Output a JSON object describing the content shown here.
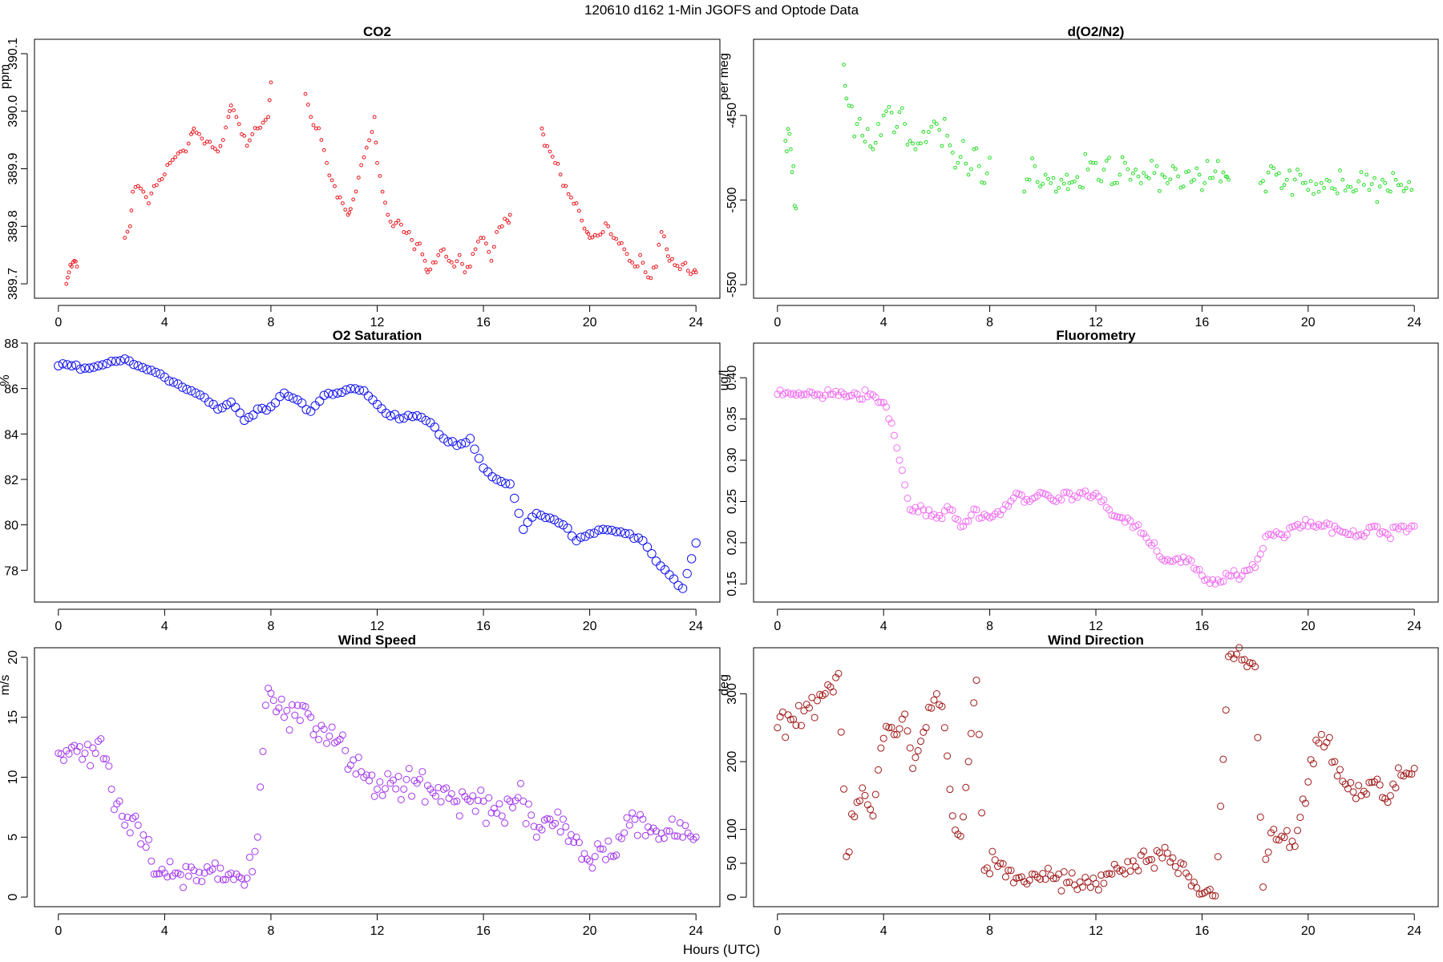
{
  "figure": {
    "title": "120610   d162   1-Min  JGOFS and Optode Data",
    "xlabel": "Hours (UTC)"
  },
  "chart_data": [
    {
      "type": "scatter",
      "title": "CO2",
      "ylabel": "ppm",
      "color": "#e8141c",
      "marker_size": "small",
      "xlim": [
        -0.9,
        24.9
      ],
      "ylim": [
        389.675,
        390.125
      ],
      "xticks": [
        0,
        4,
        8,
        12,
        16,
        20,
        24
      ],
      "yticks": [
        389.7,
        389.8,
        389.9,
        390.0,
        390.1
      ],
      "ytick_labels": [
        "389.7",
        "389.8",
        "389.9",
        "390.0",
        "390.1"
      ],
      "y_label_rotated": true,
      "series": [
        {
          "x": [
            0.3,
            0.4,
            0.5,
            0.6,
            0.7,
            2.5,
            2.7,
            2.8,
            3.0,
            3.2,
            3.4,
            3.6,
            3.8,
            4.0,
            4.2,
            4.4,
            4.6,
            4.8,
            5.0,
            5.1,
            6.0,
            6.2,
            6.4,
            6.5,
            6.7,
            6.9,
            7.1,
            7.3,
            7.5,
            7.7,
            7.9,
            8.0,
            9.3,
            9.5,
            9.7,
            9.9,
            10.1,
            10.3,
            10.5,
            10.7,
            10.9,
            11.0,
            11.9,
            12.0,
            12.2,
            12.4,
            12.6,
            12.8,
            13.0,
            13.2,
            13.4,
            13.6,
            13.8,
            13.9,
            14.5,
            14.7,
            14.9,
            15.1,
            15.3,
            15.5,
            15.7,
            15.9,
            16.1,
            16.3,
            16.5,
            16.7,
            16.9,
            17.0,
            18.2,
            18.3,
            18.5,
            18.7,
            18.9,
            19.1,
            19.3,
            19.5,
            19.7,
            19.9,
            20.0,
            20.5,
            20.7,
            20.9,
            21.1,
            21.3,
            21.5,
            21.7,
            21.9,
            22.1,
            22.3,
            22.5,
            22.7,
            22.9,
            23.0,
            23.9,
            24.0
          ],
          "y": [
            389.7,
            389.72,
            389.73,
            389.74,
            389.73,
            389.78,
            389.8,
            389.86,
            389.87,
            389.86,
            389.84,
            389.87,
            389.88,
            389.89,
            389.91,
            389.92,
            389.93,
            389.93,
            389.96,
            389.97,
            389.93,
            389.95,
            389.99,
            390.01,
            389.99,
            389.96,
            389.94,
            389.96,
            389.97,
            389.98,
            389.99,
            390.05,
            390.03,
            389.99,
            389.97,
            389.95,
            389.91,
            389.88,
            389.85,
            389.84,
            389.82,
            389.83,
            389.99,
            389.91,
            389.86,
            389.82,
            389.8,
            389.81,
            389.79,
            389.79,
            389.76,
            389.77,
            389.74,
            389.72,
            389.76,
            389.74,
            389.73,
            389.75,
            389.72,
            389.73,
            389.76,
            389.78,
            389.77,
            389.74,
            389.79,
            389.8,
            389.81,
            389.82,
            389.97,
            389.94,
            389.93,
            389.91,
            389.89,
            389.87,
            389.85,
            389.84,
            389.81,
            389.79,
            389.78,
            389.79,
            389.8,
            389.78,
            389.77,
            389.76,
            389.74,
            389.73,
            389.75,
            389.72,
            389.71,
            389.73,
            389.79,
            389.76,
            389.74,
            389.72,
            389.72
          ]
        }
      ]
    },
    {
      "type": "scatter",
      "title": "d(O2/N2)",
      "ylabel": "per meg",
      "color": "#22dd22",
      "marker_size": "small",
      "xlim": [
        -0.9,
        24.9
      ],
      "ylim": [
        -558,
        -405
      ],
      "xticks": [
        0,
        4,
        8,
        12,
        16,
        20,
        24
      ],
      "yticks": [
        -450,
        -500,
        -550
      ],
      "ytick_labels": [
        "-450",
        "-500",
        "-550"
      ],
      "y_label_rotated": true,
      "series": [
        {
          "x": [
            0.3,
            0.4,
            0.5,
            0.6,
            0.7,
            2.5,
            2.6,
            3.0,
            3.2,
            3.4,
            3.6,
            3.8,
            4.0,
            4.2,
            4.4,
            4.6,
            4.8,
            5.0,
            5.2,
            6.0,
            6.2,
            6.4,
            6.6,
            6.8,
            7.0,
            7.2,
            7.4,
            7.6,
            7.8,
            8.0,
            9.3,
            9.5,
            9.7,
            9.9,
            10.1,
            10.3,
            10.5,
            10.7,
            10.9,
            11.0,
            11.9,
            12.1,
            12.3,
            12.5,
            12.7,
            12.9,
            13.1,
            13.3,
            13.5,
            13.7,
            13.9,
            14.5,
            14.7,
            14.9,
            15.1,
            15.3,
            15.5,
            15.7,
            15.9,
            16.1,
            16.3,
            16.5,
            16.7,
            16.9,
            17.0,
            18.2,
            18.4,
            18.6,
            18.8,
            19.0,
            19.2,
            19.4,
            19.6,
            19.8,
            20.0,
            20.5,
            20.7,
            20.9,
            21.1,
            21.3,
            21.5,
            21.7,
            21.9,
            22.1,
            22.3,
            22.5,
            22.7,
            22.9,
            23.1,
            23.3,
            23.5,
            23.7,
            23.9
          ],
          "y": [
            -465,
            -458,
            -470,
            -480,
            -505,
            -420,
            -440,
            -455,
            -462,
            -458,
            -470,
            -455,
            -450,
            -445,
            -460,
            -448,
            -455,
            -465,
            -470,
            -455,
            -468,
            -462,
            -472,
            -478,
            -465,
            -485,
            -470,
            -480,
            -490,
            -475,
            -495,
            -488,
            -480,
            -492,
            -485,
            -490,
            -495,
            -488,
            -485,
            -490,
            -478,
            -488,
            -482,
            -475,
            -490,
            -485,
            -478,
            -488,
            -482,
            -490,
            -486,
            -485,
            -490,
            -480,
            -486,
            -492,
            -483,
            -488,
            -485,
            -490,
            -487,
            -483,
            -489,
            -486,
            -488,
            -490,
            -495,
            -480,
            -485,
            -493,
            -488,
            -497,
            -482,
            -490,
            -494,
            -490,
            -488,
            -493,
            -496,
            -488,
            -492,
            -495,
            -489,
            -491,
            -494,
            -487,
            -492,
            -490,
            -495,
            -488,
            -491,
            -493,
            -494
          ]
        }
      ]
    },
    {
      "type": "scatter",
      "title": "O2 Saturation",
      "ylabel": "%",
      "color": "#1515ee",
      "marker_size": "large",
      "xlim": [
        -0.9,
        24.9
      ],
      "ylim": [
        76.6,
        88.0
      ],
      "xticks": [
        0,
        4,
        8,
        12,
        16,
        20,
        24
      ],
      "yticks": [
        78,
        80,
        82,
        84,
        86,
        88
      ],
      "ytick_labels": [
        "78",
        "80",
        "82",
        "84",
        "86",
        "88"
      ],
      "y_label_rotated": false,
      "series": [
        {
          "x": [
            0,
            0.5,
            1,
            1.5,
            2,
            2.5,
            3,
            3.5,
            4,
            4.5,
            5,
            5.5,
            6,
            6.5,
            7,
            7.5,
            8,
            8.5,
            9,
            9.5,
            10,
            10.5,
            11,
            11.5,
            12,
            12.5,
            13,
            13.5,
            14,
            14.5,
            15,
            15.5,
            16,
            16.5,
            17,
            17.5,
            18,
            18.5,
            19,
            19.5,
            20,
            20.5,
            21,
            21.5,
            22,
            22.5,
            23,
            23.5,
            24
          ],
          "y": [
            87.0,
            87.0,
            86.9,
            87.0,
            87.2,
            87.3,
            87.0,
            86.8,
            86.5,
            86.2,
            85.9,
            85.6,
            85.1,
            85.4,
            84.6,
            85.1,
            85.2,
            85.8,
            85.5,
            85.0,
            85.7,
            85.8,
            86.0,
            85.9,
            85.3,
            84.8,
            84.7,
            84.8,
            84.5,
            83.8,
            83.5,
            83.8,
            82.5,
            82.0,
            81.8,
            79.8,
            80.5,
            80.3,
            80.0,
            79.3,
            79.6,
            79.8,
            79.7,
            79.6,
            79.3,
            78.4,
            77.8,
            77.2,
            79.2
          ]
        }
      ]
    },
    {
      "type": "scatter",
      "title": "Fluorometry",
      "ylabel": "ug/l",
      "color": "#f070f0",
      "marker_size": "medium",
      "xlim": [
        -0.9,
        24.9
      ],
      "ylim": [
        0.128,
        0.442
      ],
      "xticks": [
        0,
        4,
        8,
        12,
        16,
        20,
        24
      ],
      "yticks": [
        0.15,
        0.2,
        0.25,
        0.3,
        0.35,
        0.4
      ],
      "ytick_labels": [
        "0.15",
        "0.20",
        "0.25",
        "0.30",
        "0.35",
        "0.40"
      ],
      "y_label_rotated": true,
      "series": [
        {
          "x": [
            0,
            0.5,
            1,
            1.5,
            2,
            2.5,
            3,
            3.5,
            4,
            4.2,
            4.4,
            4.6,
            4.8,
            5,
            5.5,
            6,
            6.5,
            7,
            7.5,
            8,
            8.5,
            9,
            9.5,
            10,
            10.5,
            11,
            11.5,
            12,
            12.5,
            13,
            13.5,
            14,
            14.5,
            15,
            15.5,
            16,
            16.5,
            17,
            17.5,
            18,
            18.5,
            19,
            19.5,
            20,
            20.5,
            21,
            21.5,
            22,
            22.5,
            23,
            23.5,
            24
          ],
          "y": [
            0.38,
            0.38,
            0.38,
            0.38,
            0.38,
            0.38,
            0.38,
            0.38,
            0.37,
            0.35,
            0.33,
            0.3,
            0.27,
            0.24,
            0.24,
            0.23,
            0.24,
            0.22,
            0.24,
            0.23,
            0.24,
            0.26,
            0.25,
            0.26,
            0.25,
            0.26,
            0.26,
            0.26,
            0.24,
            0.23,
            0.22,
            0.2,
            0.18,
            0.18,
            0.18,
            0.16,
            0.15,
            0.16,
            0.16,
            0.17,
            0.21,
            0.21,
            0.22,
            0.22,
            0.22,
            0.22,
            0.21,
            0.21,
            0.22,
            0.21,
            0.22,
            0.22
          ]
        }
      ]
    },
    {
      "type": "scatter",
      "title": "Wind Speed",
      "ylabel": "m/s",
      "color": "#a236ee",
      "marker_size": "medium",
      "xlim": [
        -0.9,
        24.9
      ],
      "ylim": [
        -0.8,
        20.8
      ],
      "xticks": [
        0,
        4,
        8,
        12,
        16,
        20,
        24
      ],
      "yticks": [
        0,
        5,
        10,
        15,
        20
      ],
      "ytick_labels": [
        "0",
        "5",
        "10",
        "15",
        "20"
      ],
      "y_label_rotated": true,
      "series": [
        {
          "x": [
            0,
            0.5,
            1,
            1.5,
            2,
            2.5,
            3,
            3.5,
            4,
            4.5,
            5,
            5.5,
            6,
            6.5,
            7,
            7.5,
            7.8,
            8,
            8.5,
            9,
            9.5,
            10,
            10.5,
            11,
            11.5,
            12,
            12.5,
            13,
            13.5,
            14,
            14.5,
            15,
            15.5,
            16,
            16.5,
            17,
            17.5,
            18,
            18.5,
            19,
            19.5,
            20,
            20.5,
            21,
            21.5,
            22,
            22.5,
            23,
            23.5,
            24
          ],
          "y": [
            12.0,
            12.5,
            12.0,
            13.0,
            9.0,
            6.0,
            6.0,
            3.0,
            2.0,
            2.0,
            2.5,
            2.0,
            1.5,
            2.0,
            1.0,
            5.0,
            16.0,
            17.0,
            15.0,
            16.0,
            15.0,
            14.0,
            13.0,
            11.0,
            10.0,
            9.0,
            9.5,
            9.0,
            9.5,
            9.0,
            9.0,
            8.0,
            8.0,
            8.0,
            7.0,
            8.0,
            8.0,
            5.0,
            6.5,
            6.5,
            5.0,
            3.0,
            4.0,
            3.5,
            6.0,
            6.5,
            5.5,
            5.5,
            5.0,
            5.0
          ]
        }
      ]
    },
    {
      "type": "scatter",
      "title": "Wind Direction",
      "ylabel": "deg",
      "color": "#a01818",
      "marker_size": "medium",
      "xlim": [
        -0.9,
        24.9
      ],
      "ylim": [
        -14,
        368
      ],
      "xticks": [
        0,
        4,
        8,
        12,
        16,
        20,
        24
      ],
      "yticks": [
        0,
        50,
        100,
        200,
        300
      ],
      "ytick_labels": [
        "0",
        "50",
        "100",
        "200",
        "300"
      ],
      "y_label_rotated": true,
      "series": [
        {
          "x": [
            0,
            0.5,
            1,
            1.5,
            2,
            2.3,
            2.6,
            3.0,
            3.3,
            3.6,
            3.9,
            4.2,
            4.5,
            4.8,
            5.1,
            5.4,
            5.7,
            6.0,
            6.3,
            6.6,
            6.9,
            7.2,
            7.5,
            7.8,
            8.2,
            8.6,
            9,
            9.5,
            10,
            10.5,
            11,
            11.5,
            12,
            12.5,
            13,
            13.5,
            14,
            14.5,
            15,
            15.5,
            16,
            16.5,
            17,
            17.5,
            18,
            18.3,
            18.6,
            19,
            19.5,
            20,
            20.5,
            21,
            21.5,
            22,
            22.5,
            23,
            23.5,
            24
          ],
          "y": [
            250,
            262,
            275,
            290,
            310,
            330,
            60,
            140,
            150,
            120,
            220,
            250,
            240,
            270,
            190,
            230,
            280,
            300,
            250,
            120,
            90,
            200,
            320,
            40,
            55,
            30,
            28,
            25,
            35,
            28,
            22,
            15,
            20,
            35,
            40,
            45,
            55,
            58,
            45,
            30,
            5,
            2,
            355,
            350,
            340,
            15,
            95,
            90,
            75,
            170,
            240,
            200,
            160,
            150,
            170,
            140,
            180,
            190
          ]
        }
      ]
    }
  ]
}
